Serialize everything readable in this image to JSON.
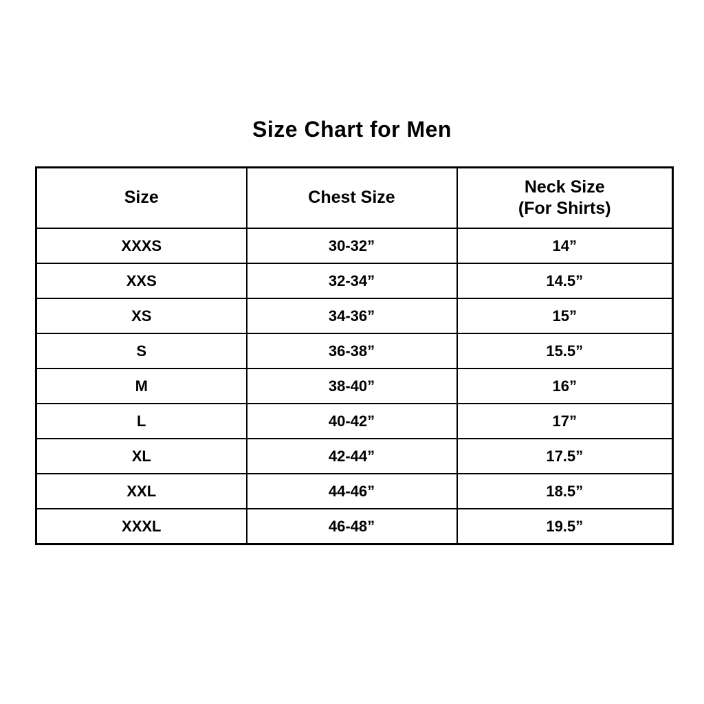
{
  "page": {
    "title": "Size Chart for Men"
  },
  "chart_data": {
    "type": "table",
    "title": "Size Chart for Men",
    "columns": [
      "Size",
      "Chest Size",
      "Neck Size"
    ],
    "columns_sub": [
      "",
      "",
      "(For Shirts)"
    ],
    "rows": [
      [
        "XXXS",
        "30-32”",
        "14”"
      ],
      [
        "XXS",
        "32-34”",
        "14.5”"
      ],
      [
        "XS",
        "34-36”",
        "15”"
      ],
      [
        "S",
        "36-38”",
        "15.5”"
      ],
      [
        "M",
        "38-40”",
        "16”"
      ],
      [
        "L",
        "40-42”",
        "17”"
      ],
      [
        "XL",
        "42-44”",
        "17.5”"
      ],
      [
        "XXL",
        "44-46”",
        "18.5”"
      ],
      [
        "XXXL",
        "46-48”",
        "19.5”"
      ]
    ]
  },
  "colors": {
    "background": "#ffffff",
    "text": "#000000",
    "border": "#000000"
  }
}
